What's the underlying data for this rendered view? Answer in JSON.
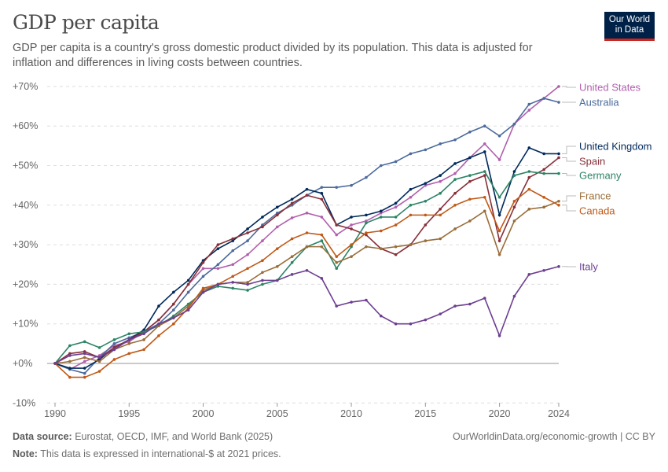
{
  "header": {
    "title": "GDP per capita",
    "subtitle": "GDP per capita is a country's gross domestic product divided by its population. This data is adjusted for inflation and differences in living costs between countries.",
    "logo": "Our World in Data"
  },
  "footer": {
    "source_label": "Data source:",
    "source": "Eurostat, OECD, IMF, and World Bank (2025)",
    "url": "OurWorldinData.org/economic-growth | CC BY",
    "note_label": "Note:",
    "note": "This data is expressed in international-$ at 2021 prices."
  },
  "chart_data": {
    "type": "line",
    "title": "GDP per capita",
    "xlabel": "",
    "ylabel": "",
    "xlim": [
      1990,
      2024
    ],
    "ylim": [
      -10,
      70
    ],
    "x_ticks": [
      1990,
      1995,
      2000,
      2005,
      2010,
      2015,
      2020,
      2024
    ],
    "y_ticks": [
      -10,
      0,
      10,
      20,
      30,
      40,
      50,
      60,
      70
    ],
    "y_tick_labels": [
      "-10%",
      "+0%",
      "+10%",
      "+20%",
      "+30%",
      "+40%",
      "+50%",
      "+60%",
      "+70%"
    ],
    "grid": true,
    "legend": "right (end labels)",
    "start_year": 1990,
    "series": [
      {
        "name": "United States",
        "color": "#b15fad",
        "values": [
          0,
          -1.5,
          0.5,
          2,
          4.5,
          5.5,
          8,
          11,
          15,
          20,
          24,
          24,
          25,
          27.5,
          31,
          34.5,
          36.8,
          38,
          37,
          32.5,
          35,
          36,
          38,
          39.5,
          42,
          45,
          46,
          48,
          52,
          55.5,
          51.5,
          60.5,
          64,
          67,
          70
        ]
      },
      {
        "name": "Australia",
        "color": "#4c6a9c",
        "values": [
          0,
          -1.5,
          -2.5,
          1.5,
          5,
          6.5,
          8,
          10,
          13.5,
          18,
          22,
          25,
          28.5,
          31,
          35,
          38,
          40,
          42.5,
          44.5,
          44.5,
          45,
          47,
          50,
          51,
          53,
          54,
          55.5,
          56.5,
          58.5,
          60,
          57.5,
          60.5,
          65.5,
          67,
          66
        ]
      },
      {
        "name": "United Kingdom",
        "color": "#00295b",
        "values": [
          0,
          -1.2,
          -1.2,
          1,
          4,
          6,
          8.5,
          14.5,
          18,
          21,
          26,
          29,
          31,
          34,
          37,
          39.5,
          41.5,
          44,
          43,
          35,
          37,
          37.5,
          38.5,
          40.5,
          44,
          45.5,
          47.5,
          50.5,
          52,
          53.5,
          37.5,
          48.5,
          54.5,
          53,
          53
        ]
      },
      {
        "name": "Spain",
        "color": "#883039",
        "values": [
          0,
          2.5,
          3,
          1.5,
          4,
          6,
          8,
          11,
          15,
          20,
          25.5,
          30,
          31.5,
          33,
          34.5,
          37.5,
          40.5,
          42.5,
          41.5,
          35,
          34,
          32.5,
          29,
          27.5,
          30,
          35,
          39,
          43,
          46,
          47.5,
          31,
          39.5,
          47,
          49,
          52
        ]
      },
      {
        "name": "Germany",
        "color": "#2c8465",
        "values": [
          0,
          4.5,
          5.5,
          4,
          6,
          7.5,
          8,
          9.5,
          12,
          15,
          18,
          19.5,
          19,
          18.5,
          20,
          21,
          25.5,
          29.5,
          31,
          24,
          29.5,
          35.5,
          37,
          37,
          40,
          41,
          43,
          46.5,
          47.5,
          48.5,
          42,
          47.5,
          48.5,
          48,
          48
        ]
      },
      {
        "name": "France",
        "color": "#996d39",
        "values": [
          0,
          0.5,
          1.5,
          0.5,
          3.5,
          5,
          6,
          9.5,
          11.5,
          14.5,
          18.5,
          20,
          20.5,
          20.5,
          23,
          24.5,
          27,
          29.5,
          29.5,
          25.5,
          27,
          29.5,
          29,
          29.5,
          30,
          31,
          31.5,
          34,
          36,
          38.5,
          27.5,
          36,
          39,
          39.5,
          41
        ]
      },
      {
        "name": "Canada",
        "color": "#c05917",
        "values": [
          0,
          -3.5,
          -3.5,
          -2,
          1,
          2.5,
          3.5,
          7,
          10,
          14,
          19,
          20,
          22,
          24,
          26,
          29,
          31.5,
          33,
          32.5,
          27,
          30,
          33,
          33.5,
          35,
          37.5,
          37.5,
          37.5,
          40,
          41.5,
          42,
          33.5,
          41,
          44,
          42,
          40
        ]
      },
      {
        "name": "Italy",
        "color": "#6d3e91",
        "values": [
          0,
          2,
          2.5,
          1.5,
          3.5,
          6,
          7.5,
          10,
          11.5,
          13.5,
          18,
          20,
          20.5,
          20,
          21,
          21,
          22.5,
          23.5,
          21.5,
          14.5,
          15.5,
          16,
          12,
          10,
          10,
          11,
          12.5,
          14.5,
          15,
          16.5,
          7,
          17,
          22.5,
          23.5,
          24.5
        ]
      }
    ]
  }
}
